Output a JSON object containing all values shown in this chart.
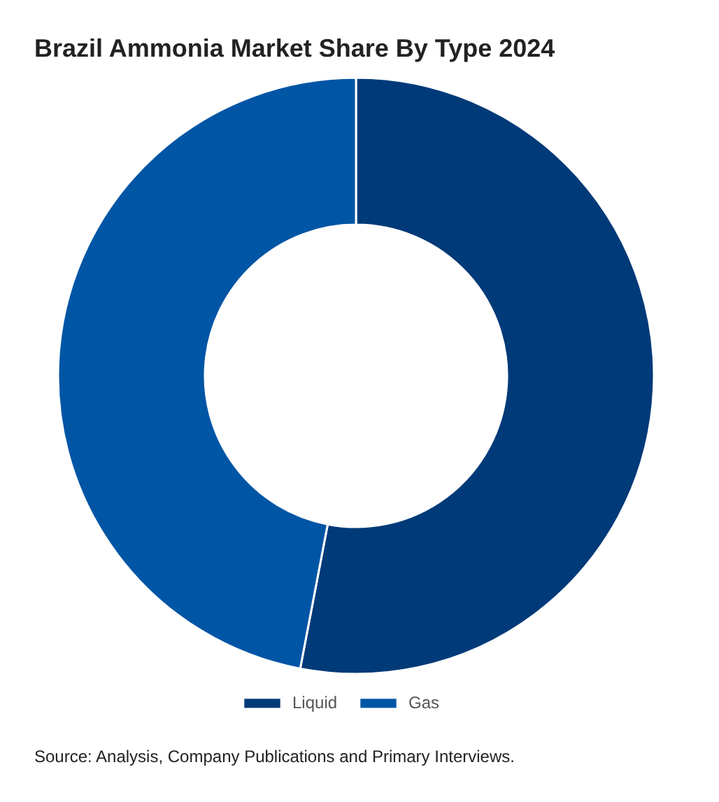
{
  "chart_data": {
    "type": "donut",
    "title": "Brazil Ammonia Market Share By Type 2024",
    "categories": [
      "Liquid",
      "Gas"
    ],
    "values": [
      53,
      47
    ],
    "colors": [
      "#003a78",
      "#0055a5"
    ],
    "legend": "bottom",
    "annotations": [
      "Source: Analysis, Company Publications and Primary Interviews."
    ]
  }
}
